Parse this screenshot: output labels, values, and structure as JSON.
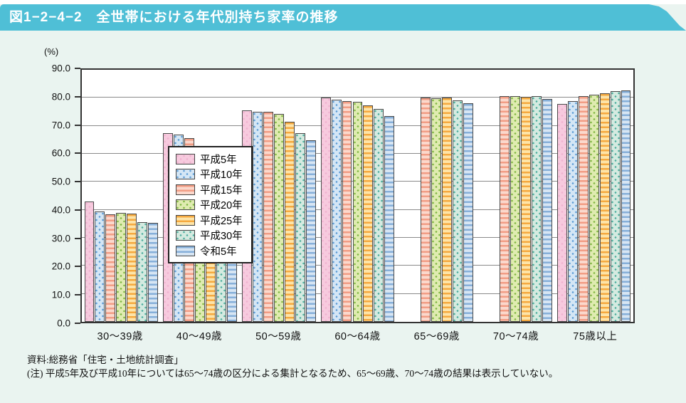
{
  "header": {
    "title": "図1−2−4−2　全世帯における年代別持ち家率の推移",
    "band_color": "#4fbfd6",
    "title_color": "#ffffff"
  },
  "notes": {
    "source": "資料:総務省「住宅・土地統計調査」",
    "note": "(注) 平成5年及び平成10年については65〜74歳の区分による集計となるため、65〜69歳、70〜74歳の結果は表示していない。"
  },
  "chart_data": {
    "type": "bar",
    "unit_label": "(%)",
    "ylim": [
      0,
      90
    ],
    "ytick_step": 10,
    "grid": true,
    "legend_position": "top-left-inside",
    "categories": [
      "30〜39歳",
      "40〜49歳",
      "50〜59歳",
      "60〜64歳",
      "65〜69歳",
      "70〜74歳",
      "75歳以上"
    ],
    "series": [
      {
        "name": "平成5年",
        "pattern": "dots",
        "base": "#f7cade",
        "accent": "#efb2cf",
        "values": [
          43.0,
          67.3,
          75.5,
          80.2,
          null,
          null,
          77.7
        ]
      },
      {
        "name": "平成10年",
        "pattern": "dots",
        "base": "#d4e6f5",
        "accent": "#5b9bd5",
        "values": [
          39.4,
          66.9,
          75.0,
          79.3,
          null,
          null,
          78.9
        ]
      },
      {
        "name": "平成15年",
        "pattern": "hstripes",
        "base": "#fbd8cc",
        "accent": "#f29d85",
        "values": [
          38.4,
          65.7,
          74.9,
          78.9,
          80.0,
          80.7,
          80.6
        ]
      },
      {
        "name": "平成20年",
        "pattern": "dots",
        "base": "#dfebb0",
        "accent": "#7eb63f",
        "values": [
          38.9,
          62.1,
          74.3,
          78.6,
          79.9,
          80.5,
          81.1
        ]
      },
      {
        "name": "平成25年",
        "pattern": "hstripes",
        "base": "#fde4a8",
        "accent": "#f5a93f",
        "values": [
          38.6,
          59.4,
          71.5,
          77.4,
          80.2,
          80.4,
          81.6
        ]
      },
      {
        "name": "平成30年",
        "pattern": "dots",
        "base": "#d4eae0",
        "accent": "#4cae9e",
        "values": [
          35.7,
          57.6,
          67.5,
          75.9,
          79.1,
          80.6,
          82.4
        ]
      },
      {
        "name": "令和5年",
        "pattern": "hstripes",
        "base": "#d7e5f3",
        "accent": "#86afd9",
        "values": [
          35.4,
          57.3,
          64.9,
          73.6,
          78.1,
          79.6,
          82.6
        ]
      }
    ]
  }
}
